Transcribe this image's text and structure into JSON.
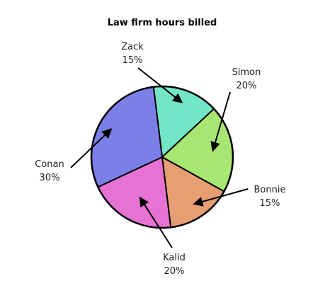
{
  "chart_data": {
    "type": "pie",
    "title": "Law firm hours billed",
    "slices": [
      {
        "name": "Zack",
        "value": 15,
        "label": "15%",
        "color": "#73e6c8"
      },
      {
        "name": "Simon",
        "value": 20,
        "label": "20%",
        "color": "#a8e673"
      },
      {
        "name": "Bonnie",
        "value": 15,
        "label": "15%",
        "color": "#e89e73"
      },
      {
        "name": "Kalid",
        "value": 20,
        "label": "20%",
        "color": "#e673d4"
      },
      {
        "name": "Conan",
        "value": 30,
        "label": "30%",
        "color": "#7b7fe8"
      }
    ]
  }
}
